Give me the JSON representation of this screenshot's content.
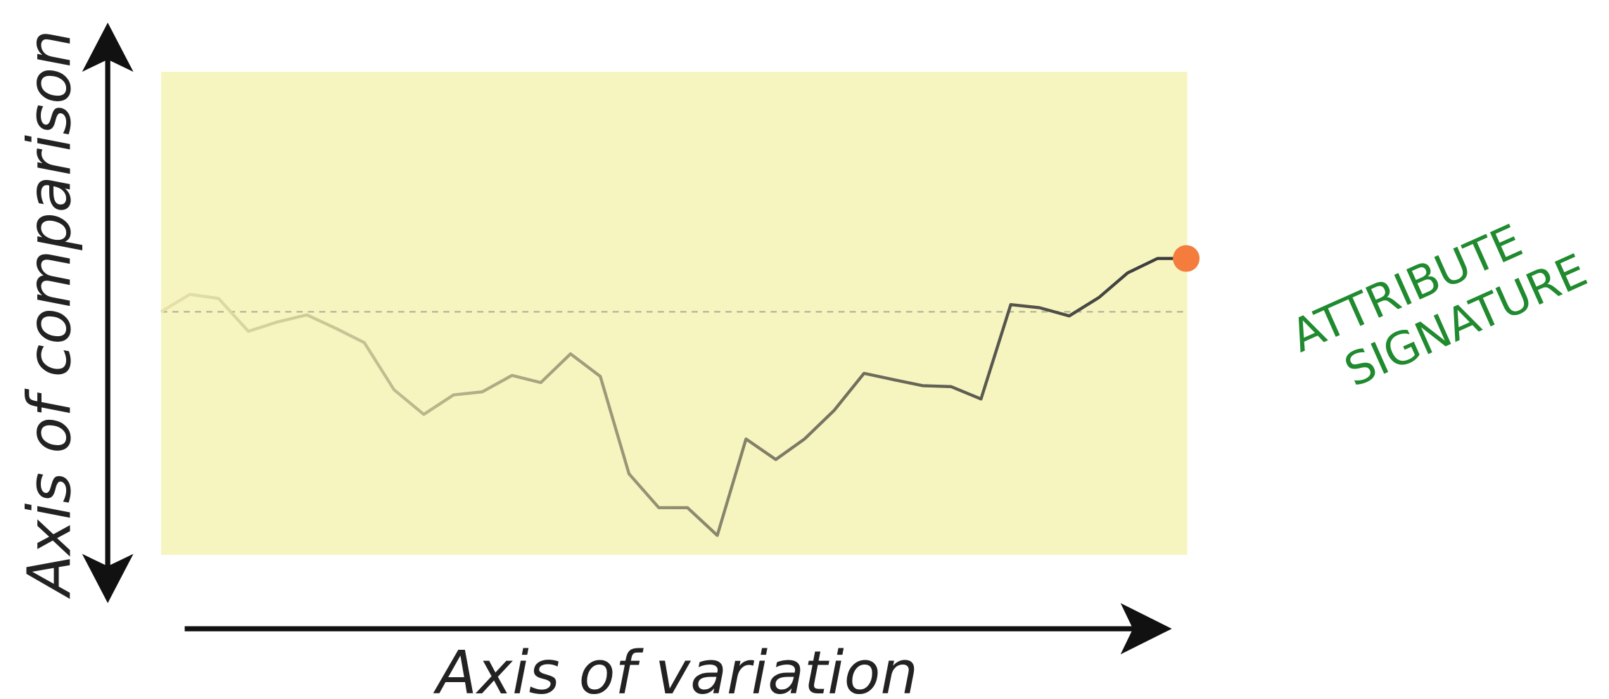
{
  "axes": {
    "vertical": "Axis of comparison",
    "horizontal": "Axis of variation"
  },
  "annotation": {
    "lines": [
      "ATTRIBUTE",
      "SIGNATURE"
    ]
  }
}
